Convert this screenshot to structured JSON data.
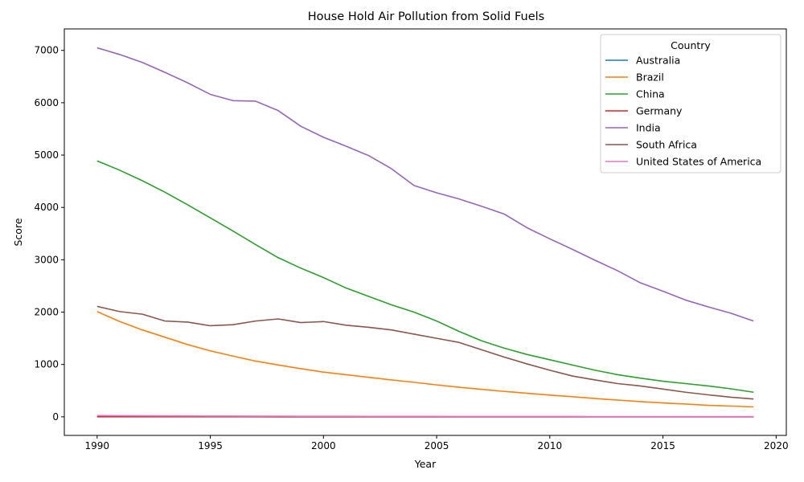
{
  "chart_data": {
    "type": "line",
    "title": "House Hold Air Pollution from Solid Fuels",
    "xlabel": "Year",
    "ylabel": "Score",
    "xlim": [
      1988.55,
      2020.45
    ],
    "ylim": [
      -355,
      7410
    ],
    "xticks": [
      1990,
      1995,
      2000,
      2005,
      2010,
      2015,
      2020
    ],
    "yticks": [
      0,
      1000,
      2000,
      3000,
      4000,
      5000,
      6000,
      7000
    ],
    "legend_title": "Country",
    "legend_position": "top-right",
    "grid": false,
    "x": [
      1990,
      1991,
      1992,
      1993,
      1994,
      1995,
      1996,
      1997,
      1998,
      1999,
      2000,
      2001,
      2002,
      2003,
      2004,
      2005,
      2006,
      2007,
      2008,
      2009,
      2010,
      2011,
      2012,
      2013,
      2014,
      2015,
      2016,
      2017,
      2018,
      2019
    ],
    "series": [
      {
        "name": "Australia",
        "color": "#1f77b4",
        "values": [
          1,
          1,
          1,
          1,
          1,
          1,
          1,
          1,
          1,
          1,
          1,
          1,
          1,
          1,
          1,
          1,
          1,
          1,
          1,
          1,
          1,
          1,
          1,
          1,
          1,
          1,
          1,
          1,
          1,
          1
        ]
      },
      {
        "name": "Brazil",
        "color": "#ff7f0e",
        "values": [
          2010,
          1820,
          1660,
          1520,
          1380,
          1260,
          1160,
          1065,
          990,
          920,
          855,
          805,
          755,
          705,
          660,
          610,
          565,
          525,
          485,
          450,
          415,
          385,
          350,
          320,
          290,
          265,
          245,
          220,
          205,
          190
        ]
      },
      {
        "name": "China",
        "color": "#2ca02c",
        "values": [
          4890,
          4710,
          4510,
          4290,
          4050,
          3800,
          3550,
          3290,
          3040,
          2840,
          2660,
          2460,
          2300,
          2140,
          2000,
          1830,
          1630,
          1450,
          1310,
          1190,
          1090,
          990,
          890,
          805,
          740,
          680,
          635,
          590,
          535,
          470
        ]
      },
      {
        "name": "Germany",
        "color": "#d62728",
        "values": [
          2,
          2,
          2,
          2,
          2,
          2,
          2,
          2,
          1,
          1,
          1,
          1,
          1,
          1,
          1,
          1,
          1,
          1,
          1,
          1,
          1,
          1,
          1,
          1,
          1,
          1,
          1,
          1,
          1,
          1
        ]
      },
      {
        "name": "India",
        "color": "#9467bd",
        "values": [
          7050,
          6920,
          6770,
          6580,
          6380,
          6160,
          6040,
          6030,
          5850,
          5550,
          5340,
          5170,
          4990,
          4740,
          4420,
          4280,
          4160,
          4020,
          3870,
          3610,
          3400,
          3200,
          2990,
          2790,
          2560,
          2400,
          2230,
          2100,
          1980,
          1830
        ]
      },
      {
        "name": "South Africa",
        "color": "#8c564b",
        "values": [
          2110,
          2010,
          1960,
          1830,
          1810,
          1740,
          1760,
          1830,
          1870,
          1800,
          1820,
          1750,
          1710,
          1660,
          1580,
          1500,
          1420,
          1280,
          1140,
          1010,
          890,
          780,
          705,
          635,
          590,
          530,
          470,
          420,
          375,
          340
        ]
      },
      {
        "name": "United States of America",
        "color": "#e377c2",
        "values": [
          25,
          22,
          20,
          18,
          16,
          15,
          14,
          13,
          12,
          11,
          10,
          10,
          9,
          9,
          8,
          8,
          7,
          7,
          7,
          6,
          6,
          6,
          5,
          5,
          5,
          5,
          4,
          4,
          4,
          4
        ]
      }
    ]
  }
}
